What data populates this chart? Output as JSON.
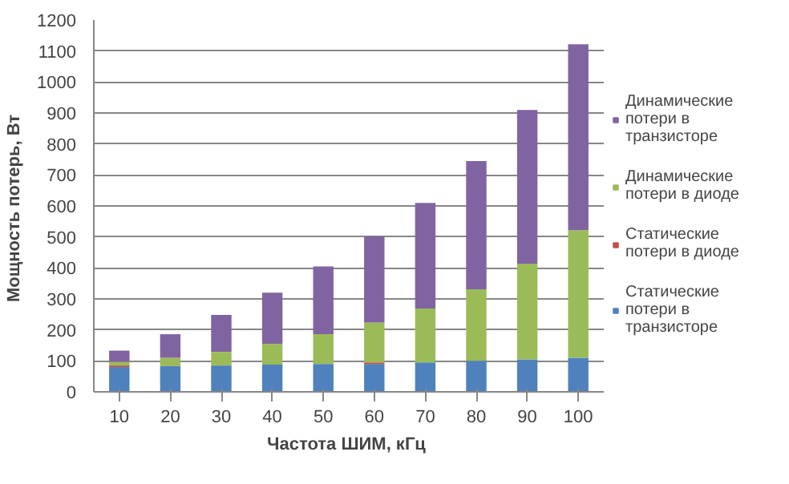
{
  "chart_data": {
    "type": "bar",
    "stacked": true,
    "xlabel": "Частота  ШИМ, кГц",
    "ylabel": "Мощность  потерь, Вт",
    "categories": [
      "10",
      "20",
      "30",
      "40",
      "50",
      "60",
      "70",
      "80",
      "90",
      "100"
    ],
    "series": [
      {
        "name": "Статические потери в транзисторе",
        "color": "#4f81bd",
        "values": [
          80,
          83,
          85,
          88,
          90,
          90,
          95,
          100,
          105,
          110
        ]
      },
      {
        "name": "Статические потери в диоде",
        "color": "#c0504d",
        "values": [
          5,
          null,
          null,
          null,
          null,
          5,
          null,
          null,
          null,
          null
        ]
      },
      {
        "name": "Динамические потери в диоде",
        "color": "#9bbb59",
        "values": [
          12,
          27,
          44,
          67,
          96,
          129,
          174,
          231,
          309,
          412
        ]
      },
      {
        "name": "Динамические потери в транзисторе",
        "color": "#8064a2",
        "values": [
          36,
          76,
          119,
          165,
          219,
          278,
          341,
          414,
          496,
          600
        ]
      }
    ],
    "ylim": [
      0,
      1200
    ],
    "yticks": [
      0,
      100,
      200,
      300,
      400,
      500,
      600,
      700,
      800,
      900,
      1000,
      1100,
      1200
    ],
    "grid": "y",
    "legend": "right"
  }
}
